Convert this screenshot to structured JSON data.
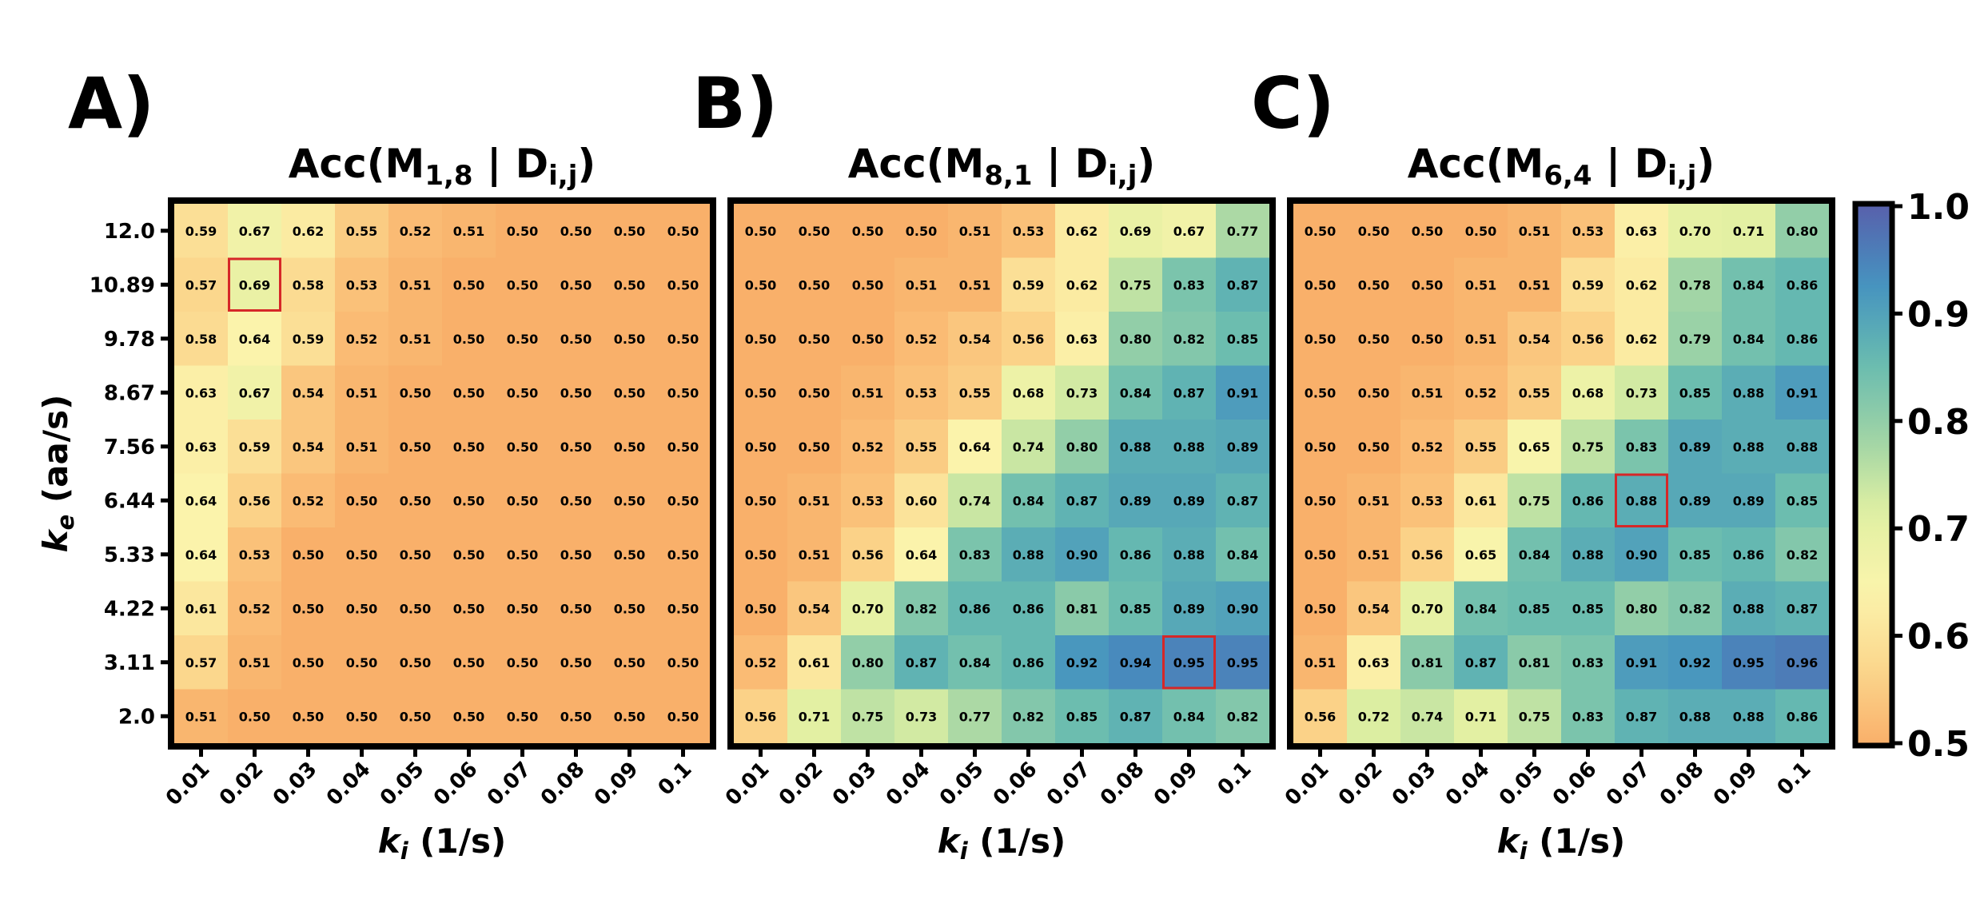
{
  "panels": [
    {
      "letter": "A)",
      "title_pre": "Acc(M",
      "title_sub1": "1,8",
      "title_mid": " | D",
      "title_sub2": "i,j",
      "title_post": ")"
    },
    {
      "letter": "B)",
      "title_pre": "Acc(M",
      "title_sub1": "8,1",
      "title_mid": " | D",
      "title_sub2": "i,j",
      "title_post": ")"
    },
    {
      "letter": "C)",
      "title_pre": "Acc(M",
      "title_sub1": "6,4",
      "title_mid": " | D",
      "title_sub2": "i,j",
      "title_post": ")"
    }
  ],
  "ylabel": {
    "symbol": "k",
    "sub": "e",
    "unit": " (aa/s)"
  },
  "xlabel": {
    "symbol": "k",
    "sub": "i",
    "unit": " (1/s)"
  },
  "highlight_color": "#d62728",
  "chart_data": [
    {
      "type": "heatmap",
      "x": [
        "0.01",
        "0.02",
        "0.03",
        "0.04",
        "0.05",
        "0.06",
        "0.07",
        "0.08",
        "0.09",
        "0.1"
      ],
      "y": [
        "12.0",
        "10.89",
        "9.78",
        "8.67",
        "7.56",
        "6.44",
        "5.33",
        "4.22",
        "3.11",
        "2.0"
      ],
      "values": [
        [
          0.59,
          0.67,
          0.62,
          0.55,
          0.52,
          0.51,
          0.5,
          0.5,
          0.5,
          0.5
        ],
        [
          0.57,
          0.69,
          0.58,
          0.53,
          0.51,
          0.5,
          0.5,
          0.5,
          0.5,
          0.5
        ],
        [
          0.58,
          0.64,
          0.59,
          0.52,
          0.51,
          0.5,
          0.5,
          0.5,
          0.5,
          0.5
        ],
        [
          0.63,
          0.67,
          0.54,
          0.51,
          0.5,
          0.5,
          0.5,
          0.5,
          0.5,
          0.5
        ],
        [
          0.63,
          0.59,
          0.54,
          0.51,
          0.5,
          0.5,
          0.5,
          0.5,
          0.5,
          0.5
        ],
        [
          0.64,
          0.56,
          0.52,
          0.5,
          0.5,
          0.5,
          0.5,
          0.5,
          0.5,
          0.5
        ],
        [
          0.64,
          0.53,
          0.5,
          0.5,
          0.5,
          0.5,
          0.5,
          0.5,
          0.5,
          0.5
        ],
        [
          0.61,
          0.52,
          0.5,
          0.5,
          0.5,
          0.5,
          0.5,
          0.5,
          0.5,
          0.5
        ],
        [
          0.57,
          0.51,
          0.5,
          0.5,
          0.5,
          0.5,
          0.5,
          0.5,
          0.5,
          0.5
        ],
        [
          0.51,
          0.5,
          0.5,
          0.5,
          0.5,
          0.5,
          0.5,
          0.5,
          0.5,
          0.5
        ]
      ],
      "highlight": {
        "x": "0.02",
        "y": "10.89"
      }
    },
    {
      "type": "heatmap",
      "x": [
        "0.01",
        "0.02",
        "0.03",
        "0.04",
        "0.05",
        "0.06",
        "0.07",
        "0.08",
        "0.09",
        "0.1"
      ],
      "y": [
        "12.0",
        "10.89",
        "9.78",
        "8.67",
        "7.56",
        "6.44",
        "5.33",
        "4.22",
        "3.11",
        "2.0"
      ],
      "values": [
        [
          0.5,
          0.5,
          0.5,
          0.5,
          0.51,
          0.53,
          0.62,
          0.69,
          0.67,
          0.77
        ],
        [
          0.5,
          0.5,
          0.5,
          0.51,
          0.51,
          0.59,
          0.62,
          0.75,
          0.83,
          0.87
        ],
        [
          0.5,
          0.5,
          0.5,
          0.52,
          0.54,
          0.56,
          0.63,
          0.8,
          0.82,
          0.85
        ],
        [
          0.5,
          0.5,
          0.51,
          0.53,
          0.55,
          0.68,
          0.73,
          0.84,
          0.87,
          0.91
        ],
        [
          0.5,
          0.5,
          0.52,
          0.55,
          0.64,
          0.74,
          0.8,
          0.88,
          0.88,
          0.89
        ],
        [
          0.5,
          0.51,
          0.53,
          0.6,
          0.74,
          0.84,
          0.87,
          0.89,
          0.89,
          0.87
        ],
        [
          0.5,
          0.51,
          0.56,
          0.64,
          0.83,
          0.88,
          0.9,
          0.86,
          0.88,
          0.84
        ],
        [
          0.5,
          0.54,
          0.7,
          0.82,
          0.86,
          0.86,
          0.81,
          0.85,
          0.89,
          0.9
        ],
        [
          0.52,
          0.61,
          0.8,
          0.87,
          0.84,
          0.86,
          0.92,
          0.94,
          0.95,
          0.95
        ],
        [
          0.56,
          0.71,
          0.75,
          0.73,
          0.77,
          0.82,
          0.85,
          0.87,
          0.84,
          0.82
        ]
      ],
      "highlight": {
        "x": "0.09",
        "y": "3.11"
      }
    },
    {
      "type": "heatmap",
      "x": [
        "0.01",
        "0.02",
        "0.03",
        "0.04",
        "0.05",
        "0.06",
        "0.07",
        "0.08",
        "0.09",
        "0.1"
      ],
      "y": [
        "12.0",
        "10.89",
        "9.78",
        "8.67",
        "7.56",
        "6.44",
        "5.33",
        "4.22",
        "3.11",
        "2.0"
      ],
      "values": [
        [
          0.5,
          0.5,
          0.5,
          0.5,
          0.51,
          0.53,
          0.63,
          0.7,
          0.71,
          0.8
        ],
        [
          0.5,
          0.5,
          0.5,
          0.51,
          0.51,
          0.59,
          0.62,
          0.78,
          0.84,
          0.86
        ],
        [
          0.5,
          0.5,
          0.5,
          0.51,
          0.54,
          0.56,
          0.62,
          0.79,
          0.84,
          0.86
        ],
        [
          0.5,
          0.5,
          0.51,
          0.52,
          0.55,
          0.68,
          0.73,
          0.85,
          0.88,
          0.91
        ],
        [
          0.5,
          0.5,
          0.52,
          0.55,
          0.65,
          0.75,
          0.83,
          0.89,
          0.88,
          0.88
        ],
        [
          0.5,
          0.51,
          0.53,
          0.61,
          0.75,
          0.86,
          0.88,
          0.89,
          0.89,
          0.85
        ],
        [
          0.5,
          0.51,
          0.56,
          0.65,
          0.84,
          0.88,
          0.9,
          0.85,
          0.86,
          0.82
        ],
        [
          0.5,
          0.54,
          0.7,
          0.84,
          0.85,
          0.85,
          0.8,
          0.82,
          0.88,
          0.87
        ],
        [
          0.51,
          0.63,
          0.81,
          0.87,
          0.81,
          0.83,
          0.91,
          0.92,
          0.95,
          0.96
        ],
        [
          0.56,
          0.72,
          0.74,
          0.71,
          0.75,
          0.83,
          0.87,
          0.88,
          0.88,
          0.86
        ]
      ],
      "highlight": {
        "x": "0.07",
        "y": "6.44"
      }
    }
  ],
  "colorbar": {
    "min": 0.5,
    "max": 1.0,
    "ticks": [
      "0.5",
      "0.6",
      "0.7",
      "0.8",
      "0.9",
      "1.0"
    ],
    "colormap": [
      "#f9b06a",
      "#fbd88e",
      "#fbf4ac",
      "#e1f0a2",
      "#9dd3a6",
      "#66bab0",
      "#4592c0",
      "#5861ac"
    ]
  }
}
